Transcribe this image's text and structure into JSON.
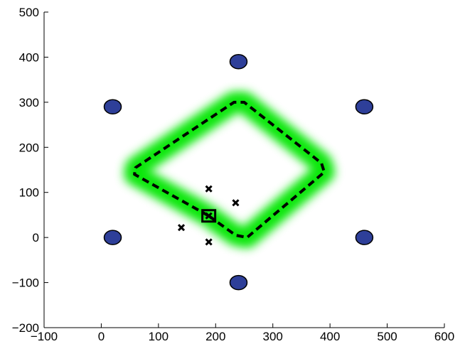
{
  "chart_data": {
    "type": "scatter",
    "title": "",
    "xlabel": "",
    "ylabel": "",
    "xlim": [
      -100,
      600
    ],
    "ylim": [
      -200,
      500
    ],
    "x_ticks": [
      -100,
      0,
      100,
      200,
      300,
      400,
      500,
      600
    ],
    "y_ticks": [
      -200,
      -100,
      0,
      100,
      200,
      300,
      400,
      500
    ],
    "x_tick_labels": [
      "−100",
      "0",
      "100",
      "200",
      "300",
      "400",
      "500",
      "600"
    ],
    "y_tick_labels": [
      "−200",
      "−100",
      "0",
      "100",
      "200",
      "300",
      "400",
      "500"
    ],
    "grid": false,
    "series": [
      {
        "marker": "ellipse",
        "color": "#2e3f99",
        "points": [
          {
            "x": 20,
            "y": 290
          },
          {
            "x": 240,
            "y": 390
          },
          {
            "x": 460,
            "y": 290
          },
          {
            "x": 460,
            "y": 0
          },
          {
            "x": 240,
            "y": -100
          },
          {
            "x": 20,
            "y": 0
          }
        ]
      },
      {
        "marker": "x",
        "color": "#000000",
        "points": [
          {
            "x": 188,
            "y": 108
          },
          {
            "x": 235,
            "y": 77
          },
          {
            "x": 140,
            "y": 22
          },
          {
            "x": 188,
            "y": -10
          },
          {
            "x": 188,
            "y": 48
          }
        ]
      },
      {
        "marker": "square",
        "color": "#000000",
        "points": [
          {
            "x": 188,
            "y": 48
          }
        ]
      },
      {
        "marker": "dashed-line",
        "color": "#000000",
        "glow_color": "#00e600",
        "points": [
          {
            "x": 188,
            "y": 48
          },
          {
            "x": 235,
            "y": 5
          },
          {
            "x": 255,
            "y": 0
          },
          {
            "x": 390,
            "y": 145
          },
          {
            "x": 385,
            "y": 165
          },
          {
            "x": 250,
            "y": 300
          },
          {
            "x": 232,
            "y": 300
          },
          {
            "x": 60,
            "y": 155
          },
          {
            "x": 58,
            "y": 140
          },
          {
            "x": 150,
            "y": 75
          },
          {
            "x": 188,
            "y": 48
          }
        ]
      }
    ]
  }
}
